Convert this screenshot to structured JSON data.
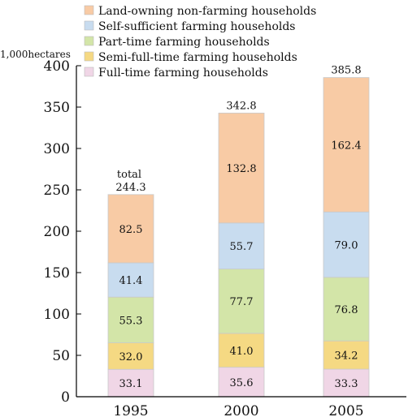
{
  "chart_data": {
    "type": "bar",
    "stacked": true,
    "ylabel": "1,000hectares",
    "ylim": [
      0,
      400
    ],
    "yticks": [
      0,
      50,
      100,
      150,
      200,
      250,
      300,
      350,
      400
    ],
    "categories": [
      "1995",
      "2000",
      "2005"
    ],
    "series": [
      {
        "name": "Full-time farming households",
        "color": "#f0d6e6",
        "values": [
          33.1,
          35.6,
          33.3
        ]
      },
      {
        "name": "Semi-full-time farming households",
        "color": "#f5d983",
        "values": [
          32.0,
          41.0,
          34.2
        ]
      },
      {
        "name": "Part-time farming households",
        "color": "#d3e5a8",
        "values": [
          55.3,
          77.7,
          76.8
        ]
      },
      {
        "name": "Self-sufficient farming households",
        "color": "#c8dcef",
        "values": [
          41.4,
          55.7,
          79.0
        ]
      },
      {
        "name": "Land-owning non-farming households",
        "color": "#f8cba5",
        "values": [
          82.5,
          132.8,
          162.4
        ]
      }
    ],
    "totals": [
      244.3,
      342.8,
      385.8
    ],
    "total_caption": "total",
    "legend_order": [
      "Land-owning non-farming households",
      "Self-sufficient farming households",
      "Part-time farming households",
      "Semi-full-time farming households",
      "Full-time farming households"
    ],
    "legend_position": "top-center",
    "grid": false
  }
}
